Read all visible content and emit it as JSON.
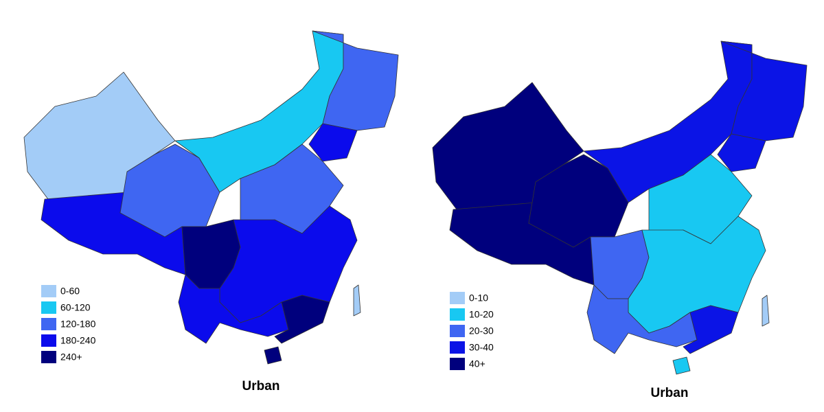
{
  "maps": [
    {
      "legend": [
        {
          "label": "0-60",
          "color": "#a3ccf7"
        },
        {
          "label": "60-120",
          "color": "#18c8f2"
        },
        {
          "label": "120-180",
          "color": "#3f66f2"
        },
        {
          "label": "180-240",
          "color": "#0b0bec"
        },
        {
          "label": "240+",
          "color": "#00007d"
        }
      ],
      "caption": "Urban"
    },
    {
      "legend": [
        {
          "label": "0-10",
          "color": "#a3ccf7"
        },
        {
          "label": "10-20",
          "color": "#18c8f2"
        },
        {
          "label": "20-30",
          "color": "#3f66f2"
        },
        {
          "label": "30-40",
          "color": "#0b14e6"
        },
        {
          "label": "40+",
          "color": "#00007d"
        }
      ],
      "caption": "Urban"
    }
  ]
}
